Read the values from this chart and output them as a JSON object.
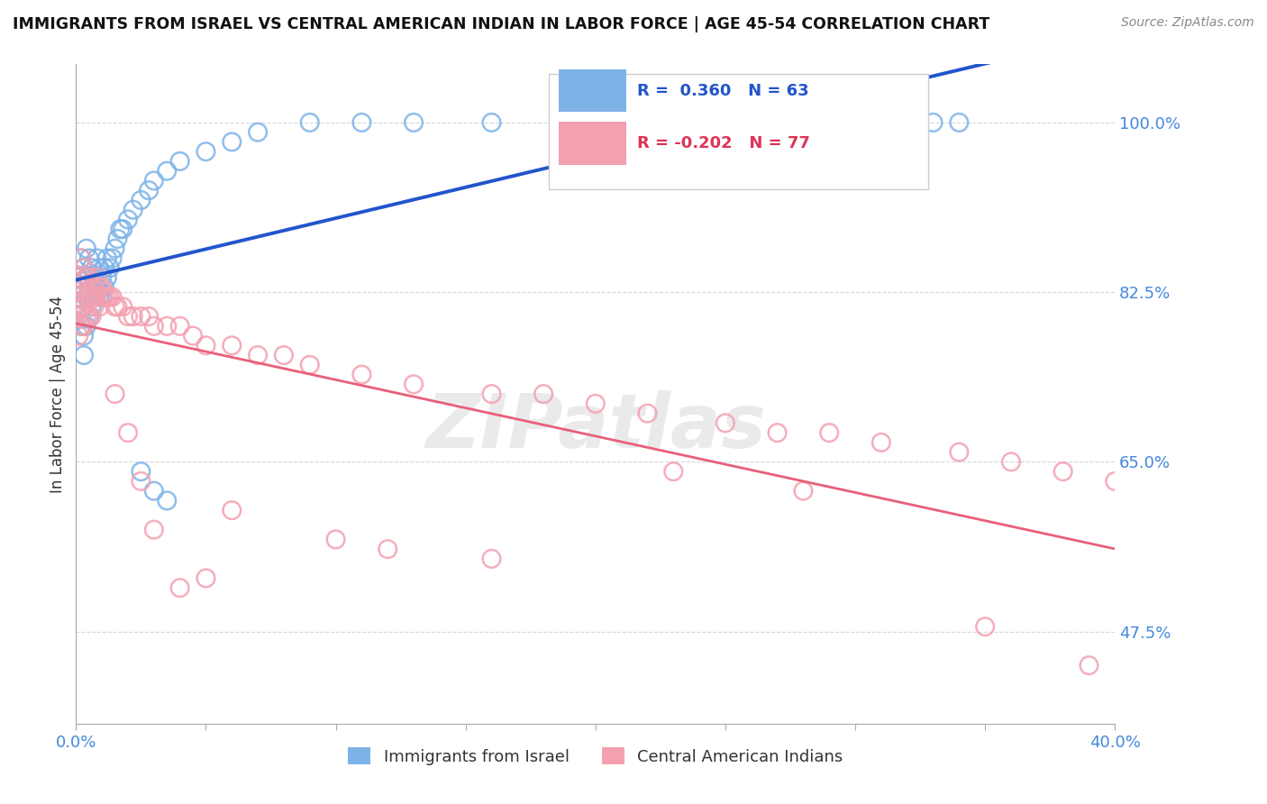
{
  "title": "IMMIGRANTS FROM ISRAEL VS CENTRAL AMERICAN INDIAN IN LABOR FORCE | AGE 45-54 CORRELATION CHART",
  "source_text": "Source: ZipAtlas.com",
  "ylabel": "In Labor Force | Age 45-54",
  "xlim": [
    0.0,
    0.4
  ],
  "ylim": [
    0.38,
    1.06
  ],
  "yticks": [
    0.475,
    0.65,
    0.825,
    1.0
  ],
  "ytick_labels": [
    "47.5%",
    "65.0%",
    "82.5%",
    "100.0%"
  ],
  "xticks": [
    0.0,
    0.05,
    0.1,
    0.15,
    0.2,
    0.25,
    0.3,
    0.35,
    0.4
  ],
  "xtick_labels": [
    "0.0%",
    "",
    "",
    "",
    "",
    "",
    "",
    "",
    "40.0%"
  ],
  "blue_R": 0.36,
  "blue_N": 63,
  "pink_R": -0.202,
  "pink_N": 77,
  "blue_color": "#7EB3E8",
  "pink_color": "#F4A0B0",
  "blue_line_color": "#2255CC",
  "pink_line_color": "#E8607A",
  "watermark": "ZIPatlas",
  "blue_scatter_x": [
    0.001,
    0.001,
    0.001,
    0.002,
    0.002,
    0.002,
    0.002,
    0.003,
    0.003,
    0.003,
    0.003,
    0.003,
    0.004,
    0.004,
    0.004,
    0.004,
    0.005,
    0.005,
    0.005,
    0.005,
    0.006,
    0.006,
    0.006,
    0.007,
    0.007,
    0.008,
    0.008,
    0.009,
    0.009,
    0.01,
    0.01,
    0.011,
    0.011,
    0.012,
    0.012,
    0.013,
    0.014,
    0.015,
    0.016,
    0.017,
    0.018,
    0.02,
    0.022,
    0.025,
    0.028,
    0.03,
    0.035,
    0.04,
    0.05,
    0.06,
    0.07,
    0.09,
    0.11,
    0.13,
    0.16,
    0.22,
    0.31,
    0.32,
    0.33,
    0.34,
    0.025,
    0.03,
    0.035
  ],
  "blue_scatter_y": [
    0.84,
    0.82,
    0.8,
    0.86,
    0.83,
    0.81,
    0.79,
    0.85,
    0.83,
    0.81,
    0.78,
    0.76,
    0.87,
    0.84,
    0.82,
    0.79,
    0.86,
    0.84,
    0.82,
    0.8,
    0.85,
    0.83,
    0.81,
    0.84,
    0.82,
    0.86,
    0.83,
    0.85,
    0.82,
    0.84,
    0.82,
    0.85,
    0.83,
    0.86,
    0.84,
    0.85,
    0.86,
    0.87,
    0.88,
    0.89,
    0.89,
    0.9,
    0.91,
    0.92,
    0.93,
    0.94,
    0.95,
    0.96,
    0.97,
    0.98,
    0.99,
    1.0,
    1.0,
    1.0,
    1.0,
    1.0,
    1.0,
    1.0,
    1.0,
    1.0,
    0.64,
    0.62,
    0.61
  ],
  "pink_scatter_x": [
    0.001,
    0.001,
    0.001,
    0.001,
    0.002,
    0.002,
    0.002,
    0.002,
    0.003,
    0.003,
    0.003,
    0.003,
    0.004,
    0.004,
    0.004,
    0.005,
    0.005,
    0.005,
    0.006,
    0.006,
    0.006,
    0.007,
    0.007,
    0.008,
    0.008,
    0.009,
    0.009,
    0.01,
    0.01,
    0.011,
    0.012,
    0.013,
    0.014,
    0.015,
    0.016,
    0.018,
    0.02,
    0.022,
    0.025,
    0.028,
    0.03,
    0.035,
    0.04,
    0.045,
    0.05,
    0.06,
    0.07,
    0.08,
    0.09,
    0.11,
    0.13,
    0.16,
    0.18,
    0.2,
    0.22,
    0.25,
    0.27,
    0.29,
    0.31,
    0.34,
    0.36,
    0.38,
    0.4,
    0.015,
    0.02,
    0.025,
    0.03,
    0.04,
    0.05,
    0.06,
    0.1,
    0.12,
    0.16,
    0.23,
    0.28,
    0.35,
    0.39
  ],
  "pink_scatter_y": [
    0.84,
    0.82,
    0.8,
    0.78,
    0.86,
    0.83,
    0.81,
    0.79,
    0.85,
    0.83,
    0.81,
    0.79,
    0.84,
    0.82,
    0.8,
    0.84,
    0.82,
    0.8,
    0.83,
    0.82,
    0.8,
    0.83,
    0.81,
    0.84,
    0.82,
    0.83,
    0.81,
    0.83,
    0.82,
    0.82,
    0.82,
    0.82,
    0.82,
    0.81,
    0.81,
    0.81,
    0.8,
    0.8,
    0.8,
    0.8,
    0.79,
    0.79,
    0.79,
    0.78,
    0.77,
    0.77,
    0.76,
    0.76,
    0.75,
    0.74,
    0.73,
    0.72,
    0.72,
    0.71,
    0.7,
    0.69,
    0.68,
    0.68,
    0.67,
    0.66,
    0.65,
    0.64,
    0.63,
    0.72,
    0.68,
    0.63,
    0.58,
    0.52,
    0.53,
    0.6,
    0.57,
    0.56,
    0.55,
    0.64,
    0.62,
    0.48,
    0.44
  ]
}
